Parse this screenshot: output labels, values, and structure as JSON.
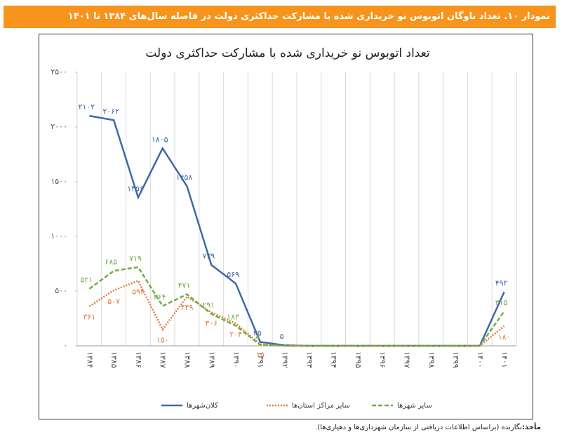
{
  "header": {
    "title": "نمودار ۱۰. تعداد ناوگان اتوبوس نو خریداری شده با مشارکت حداکثری دولت در فاصله سال‌های ۱۳۸۴ تا ۱۴۰۱"
  },
  "chart_data": {
    "type": "line",
    "title": "تعداد اتوبوس نو خریداری شده با مشارکت حداکثری دولت",
    "categories": [
      "۱۳۸۴",
      "۱۳۸۵",
      "۱۳۸۶",
      "۱۳۸۷",
      "۱۳۸۸",
      "۱۳۸۹",
      "۱۳۹۰",
      "۱۳۹۱",
      "۱۳۹۲",
      "۱۳۹۳",
      "۱۳۹۴",
      "۱۳۹۵",
      "۱۳۹۶",
      "۱۳۹۷",
      "۱۳۹۸",
      "۱۳۹۹",
      "۱۴۰۰",
      "۱۴۰۱"
    ],
    "series": [
      {
        "name": "کلان‌شهرها",
        "color": "#3f68a6",
        "style": "solid",
        "values": [
          2102,
          2062,
          1356,
          1805,
          1458,
          739,
          569,
          35,
          5,
          0,
          0,
          0,
          0,
          0,
          0,
          0,
          0,
          492
        ],
        "value_labels": [
          "۲۱۰۲",
          "۲۰۶۲",
          "۱۳۵۶",
          "۱۸۰۵",
          "۱۴۵۸",
          "۷۳۹",
          "۵۶۹",
          "۳۵",
          "۵",
          null,
          null,
          null,
          null,
          null,
          null,
          null,
          null,
          "۴۹۲"
        ]
      },
      {
        "name": "سایر مراکز استان‌ها",
        "color": "#e07b39",
        "style": "dotted",
        "values": [
          361,
          507,
          594,
          150,
          449,
          306,
          204,
          15,
          0,
          0,
          0,
          0,
          0,
          0,
          0,
          0,
          0,
          180
        ],
        "value_labels": [
          "۳۶۱",
          "۵۰۷",
          "۵۹۴",
          "۱۵۰",
          "۴۴۹",
          "۳۰۶",
          "۲۰۴",
          "۱۵",
          null,
          null,
          null,
          null,
          null,
          null,
          null,
          null,
          null,
          "۱۸۰"
        ]
      },
      {
        "name": "سایر شهرها",
        "color": "#70ad47",
        "style": "dashed",
        "values": [
          521,
          685,
          719,
          364,
          471,
          291,
          183,
          8,
          0,
          0,
          0,
          0,
          0,
          0,
          0,
          0,
          0,
          315
        ],
        "value_labels": [
          "۵۲۱",
          "۶۸۵",
          "۷۱۹",
          "۳۶۴",
          "۴۷۱",
          "۲۹۱",
          "۱۸۳",
          "۸",
          null,
          null,
          null,
          null,
          null,
          null,
          null,
          null,
          null,
          "۳۱۵"
        ]
      }
    ],
    "ylim": [
      0,
      2500
    ],
    "yticks": [
      {
        "value": 0,
        "label": "۰"
      },
      {
        "value": 500,
        "label": "۵۰۰"
      },
      {
        "value": 1000,
        "label": "۱۰۰۰"
      },
      {
        "value": 1500,
        "label": "۱۵۰۰"
      },
      {
        "value": 2000,
        "label": "۲۰۰۰"
      },
      {
        "value": 2500,
        "label": "۲۵۰۰"
      }
    ],
    "grid": "vertical"
  },
  "source": {
    "label": "مأخذ:",
    "text": "نگارنده (براساس اطلاعات دریافتی از سازمان شهرداری‌ها و دهیاری‌ها)."
  }
}
